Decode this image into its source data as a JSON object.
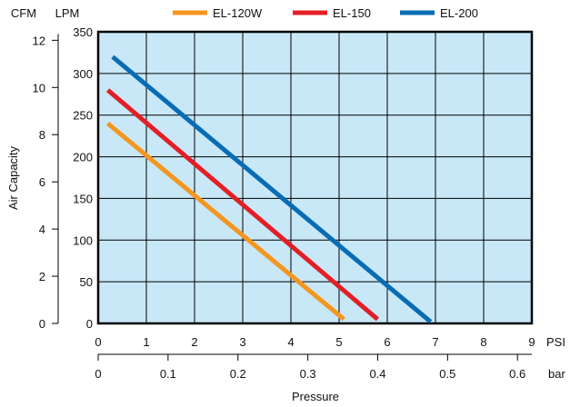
{
  "chart_data": {
    "type": "line",
    "legend": {
      "placement": "top",
      "entries": [
        {
          "label": "EL-120W",
          "color": "#f5961e"
        },
        {
          "label": "EL-150",
          "color": "#e31f26"
        },
        {
          "label": "EL-200",
          "color": "#0a6cb2"
        }
      ]
    },
    "x_primary": {
      "unit_label": "PSI",
      "ticks": [
        "0",
        "1",
        "2",
        "3",
        "4",
        "5",
        "6",
        "7",
        "8",
        "9"
      ],
      "range": [
        0,
        9
      ]
    },
    "x_secondary": {
      "unit_label": "bar",
      "ticks": [
        "0",
        "0.1",
        "0.2",
        "0.3",
        "0.4",
        "0.5",
        "0.6"
      ],
      "range_bar": [
        0,
        0.6
      ]
    },
    "xlabel": "Pressure",
    "y_primary": {
      "unit_label": "LPM",
      "ticks": [
        "0",
        "50",
        "100",
        "150",
        "200",
        "250",
        "300",
        "350"
      ],
      "range": [
        0,
        350
      ]
    },
    "y_secondary": {
      "unit_label": "CFM",
      "ticks": [
        "0",
        "2",
        "4",
        "6",
        "8",
        "10",
        "12"
      ],
      "range_cfm": [
        0,
        12
      ]
    },
    "ylabel": "Air Capacity",
    "grid": true,
    "plot_background": "#c8e8f8",
    "series": [
      {
        "name": "EL-120W",
        "color": "#f5961e",
        "x": [
          0.2,
          5.1
        ],
        "y": [
          240,
          5
        ]
      },
      {
        "name": "EL-150",
        "color": "#e31f26",
        "x": [
          0.2,
          5.8
        ],
        "y": [
          280,
          5
        ]
      },
      {
        "name": "EL-200",
        "color": "#0a6cb2",
        "x": [
          0.3,
          6.9
        ],
        "y": [
          320,
          2
        ]
      }
    ]
  }
}
